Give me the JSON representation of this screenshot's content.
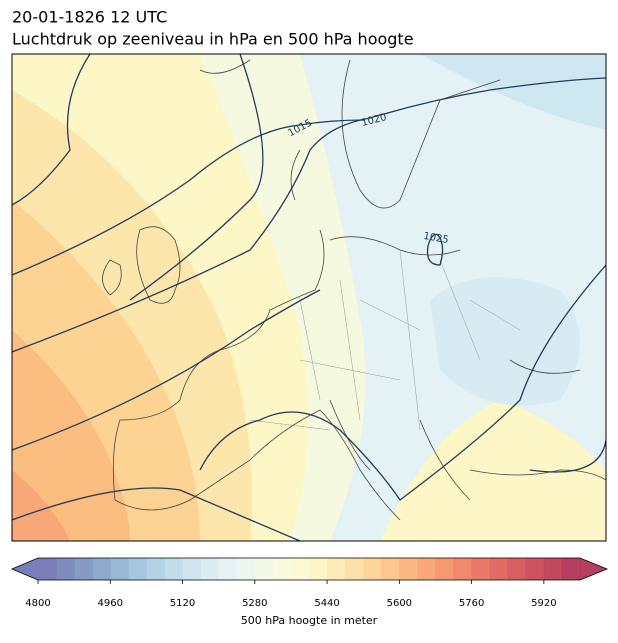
{
  "title": "20-01-1826 12 UTC",
  "subtitle": "Luchtdruk op zeeniveau in hPa en 500 hPa hoogte",
  "isobar_labels": [
    1015,
    1020,
    1025
  ],
  "colorbar": {
    "label": "500 hPa hoogte in meter",
    "xlim": [
      4800,
      6000
    ],
    "xticks": [
      4800,
      4960,
      5120,
      5280,
      5440,
      5600,
      5760,
      5920
    ],
    "levels": [
      4800,
      4840,
      4880,
      4920,
      4960,
      5000,
      5040,
      5080,
      5120,
      5160,
      5200,
      5240,
      5280,
      5320,
      5360,
      5400,
      5440,
      5480,
      5520,
      5560,
      5600,
      5640,
      5680,
      5720,
      5760,
      5800,
      5840,
      5880,
      5920,
      5960,
      6000
    ],
    "colors": [
      "#6a6fb0",
      "#7080b8",
      "#7890c0",
      "#82a0c8",
      "#8eb0d2",
      "#9cbfdb",
      "#abcde3",
      "#bad8e9",
      "#c9e2ee",
      "#d8eaf2",
      "#e2f0f4",
      "#ecf5ee",
      "#f3f8e4",
      "#f8fadc",
      "#fcfad0",
      "#fef5c0",
      "#fee9ae",
      "#fedd9e",
      "#fdd090",
      "#fcc082",
      "#fbb076",
      "#f99f6c",
      "#f58e62",
      "#ef7c5a",
      "#e86c55",
      "#df5c52",
      "#d44d50",
      "#c8404f",
      "#bb344f",
      "#ae2a4e"
    ]
  }
}
